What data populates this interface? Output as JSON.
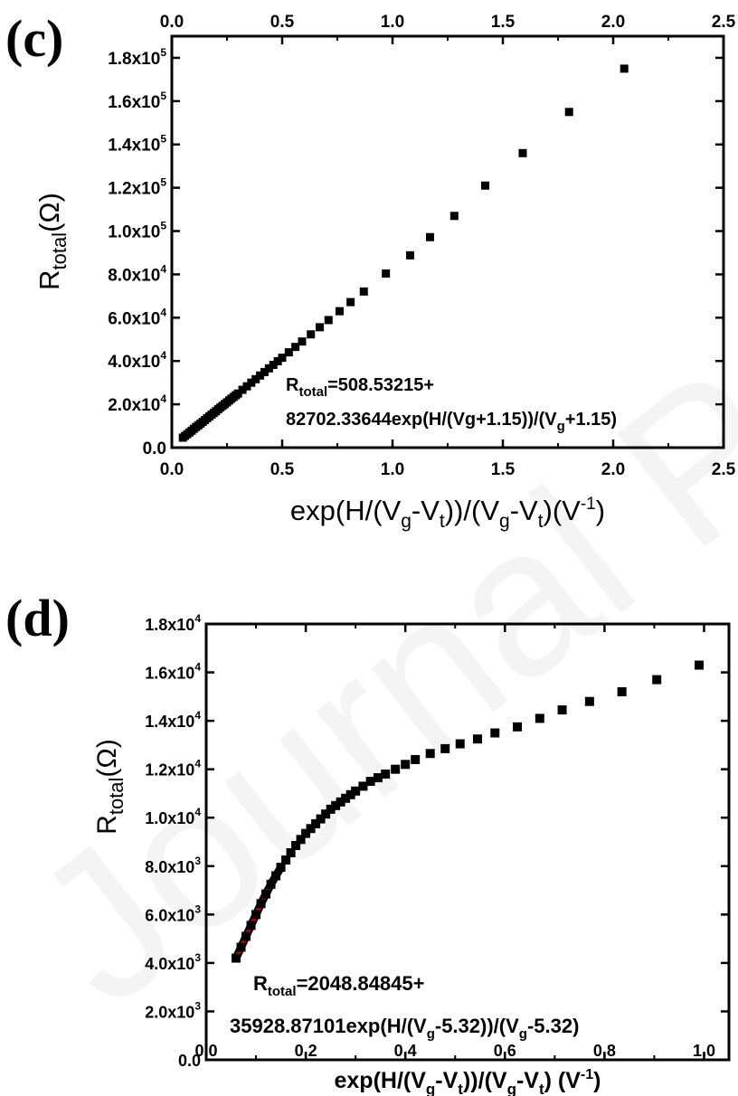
{
  "watermark": "Journal Pre-proof",
  "chart_data": [
    {
      "panel": "(c)",
      "type": "scatter",
      "xlabel_parts": [
        "exp(H/(V",
        "g",
        "-V",
        "t",
        "))/(V",
        "g",
        "-V",
        "t",
        ")(V",
        "-1",
        ")"
      ],
      "ylabel_parts": [
        "R",
        "total",
        "(Ω)"
      ],
      "xlim": [
        0.0,
        2.5
      ],
      "ylim": [
        0,
        190000
      ],
      "x_ticks": [
        0.0,
        0.5,
        1.0,
        1.5,
        2.0,
        2.5
      ],
      "x_tick_labels": [
        "0.0",
        "0.5",
        "1.0",
        "1.5",
        "2.0",
        "2.5"
      ],
      "top_tick_labels": [
        "0.0",
        "0.5",
        "1.0",
        "1.5",
        "2.0",
        "2.5"
      ],
      "y_ticks": [
        0,
        20000,
        40000,
        60000,
        80000,
        100000,
        120000,
        140000,
        160000,
        180000
      ],
      "y_tick_labels": [
        {
          "mant": "0.0",
          "exp": ""
        },
        {
          "mant": "2.0x10",
          "exp": "4"
        },
        {
          "mant": "4.0x10",
          "exp": "4"
        },
        {
          "mant": "6.0x10",
          "exp": "4"
        },
        {
          "mant": "8.0x10",
          "exp": "4"
        },
        {
          "mant": "1.0x10",
          "exp": "5"
        },
        {
          "mant": "1.2x10",
          "exp": "5"
        },
        {
          "mant": "1.4x10",
          "exp": "5"
        },
        {
          "mant": "1.6x10",
          "exp": "5"
        },
        {
          "mant": "1.8x10",
          "exp": "5"
        }
      ],
      "series": [
        {
          "marker": "square",
          "color": "#000000",
          "x": [
            0.05,
            0.06,
            0.07,
            0.08,
            0.09,
            0.1,
            0.11,
            0.12,
            0.13,
            0.14,
            0.15,
            0.16,
            0.17,
            0.18,
            0.19,
            0.2,
            0.21,
            0.22,
            0.23,
            0.24,
            0.25,
            0.26,
            0.27,
            0.28,
            0.29,
            0.3,
            0.32,
            0.34,
            0.36,
            0.38,
            0.4,
            0.42,
            0.44,
            0.46,
            0.48,
            0.5,
            0.53,
            0.56,
            0.59,
            0.63,
            0.67,
            0.71,
            0.76,
            0.81,
            0.87,
            0.97,
            1.08,
            1.17,
            1.28,
            1.42,
            1.59,
            1.8,
            2.05
          ],
          "y": [
            4600,
            5400,
            6200,
            7000,
            7800,
            8700,
            9500,
            10300,
            11100,
            11900,
            12700,
            13600,
            14400,
            15200,
            16000,
            16800,
            17700,
            18500,
            19300,
            20100,
            20900,
            21800,
            22600,
            23400,
            24200,
            25000,
            26700,
            28300,
            30000,
            31600,
            33300,
            34900,
            36600,
            38200,
            39900,
            41500,
            44000,
            46500,
            49000,
            52300,
            55600,
            58900,
            63000,
            67200,
            72100,
            80400,
            88800,
            97200,
            107000,
            121000,
            136000,
            155000,
            175000
          ]
        }
      ],
      "annotation": {
        "line1_parts": [
          "R",
          "total",
          "=508.53215+"
        ],
        "line2_parts": [
          "82702.33644exp(H/(Vg+1.15))/(V",
          "g",
          "+1.15)"
        ]
      }
    },
    {
      "panel": "(d)",
      "type": "scatter",
      "xlabel_parts": [
        "exp(H/(V",
        "g",
        "-V",
        "t",
        "))/(V",
        "g",
        "-V",
        "t",
        ") (V",
        "-1",
        ")"
      ],
      "ylabel_parts": [
        "R",
        "total",
        "(Ω)"
      ],
      "xlim": [
        0.0,
        1.05
      ],
      "ylim": [
        0,
        18000
      ],
      "x_ticks": [
        0.0,
        0.2,
        0.4,
        0.6,
        0.8,
        1.0
      ],
      "x_tick_labels": [
        "0.0",
        "0.2",
        "0.4",
        "0.6",
        "0.8",
        "1.0"
      ],
      "y_ticks": [
        0,
        2000,
        4000,
        6000,
        8000,
        10000,
        12000,
        14000,
        16000,
        18000
      ],
      "y_tick_labels": [
        {
          "mant": "0.0",
          "exp": ""
        },
        {
          "mant": "2.0x10",
          "exp": "3"
        },
        {
          "mant": "4.0x10",
          "exp": "3"
        },
        {
          "mant": "6.0x10",
          "exp": "3"
        },
        {
          "mant": "8.0x10",
          "exp": "3"
        },
        {
          "mant": "1.0x10",
          "exp": "4"
        },
        {
          "mant": "1.2x10",
          "exp": "4"
        },
        {
          "mant": "1.4x10",
          "exp": "4"
        },
        {
          "mant": "1.6x10",
          "exp": "4"
        },
        {
          "mant": "1.8x10",
          "exp": "4"
        }
      ],
      "series": [
        {
          "marker": "square",
          "color": "#000000",
          "x": [
            0.06,
            0.07,
            0.08,
            0.09,
            0.1,
            0.11,
            0.12,
            0.13,
            0.14,
            0.15,
            0.16,
            0.17,
            0.18,
            0.19,
            0.2,
            0.21,
            0.22,
            0.23,
            0.24,
            0.25,
            0.26,
            0.27,
            0.28,
            0.29,
            0.3,
            0.315,
            0.33,
            0.345,
            0.36,
            0.38,
            0.4,
            0.42,
            0.45,
            0.48,
            0.51,
            0.545,
            0.58,
            0.625,
            0.67,
            0.715,
            0.77,
            0.835,
            0.905,
            0.99
          ],
          "y": [
            4200,
            4650,
            5100,
            5550,
            6000,
            6450,
            6850,
            7250,
            7600,
            7950,
            8250,
            8550,
            8850,
            9100,
            9350,
            9550,
            9750,
            9950,
            10150,
            10350,
            10500,
            10650,
            10800,
            10950,
            11100,
            11300,
            11500,
            11650,
            11800,
            12000,
            12200,
            12400,
            12650,
            12850,
            13050,
            13250,
            13500,
            13750,
            14100,
            14450,
            14800,
            15200,
            15700,
            16300
          ]
        }
      ],
      "fit": {
        "color": "#dd0000",
        "x": [
          0.06,
          0.07,
          0.08,
          0.09,
          0.1,
          0.11,
          0.12,
          0.13,
          0.14,
          0.15
        ],
        "y": [
          4200,
          4650,
          5100,
          5550,
          6000,
          6450,
          6850,
          7250,
          7600,
          7950
        ]
      },
      "annotation": {
        "line1_parts": [
          "R",
          "total",
          "=2048.84845+"
        ],
        "line2_parts": [
          "35928.87101exp(H/(V",
          "g",
          "-5.32))/(V",
          "g",
          "-5.32)"
        ]
      }
    }
  ]
}
